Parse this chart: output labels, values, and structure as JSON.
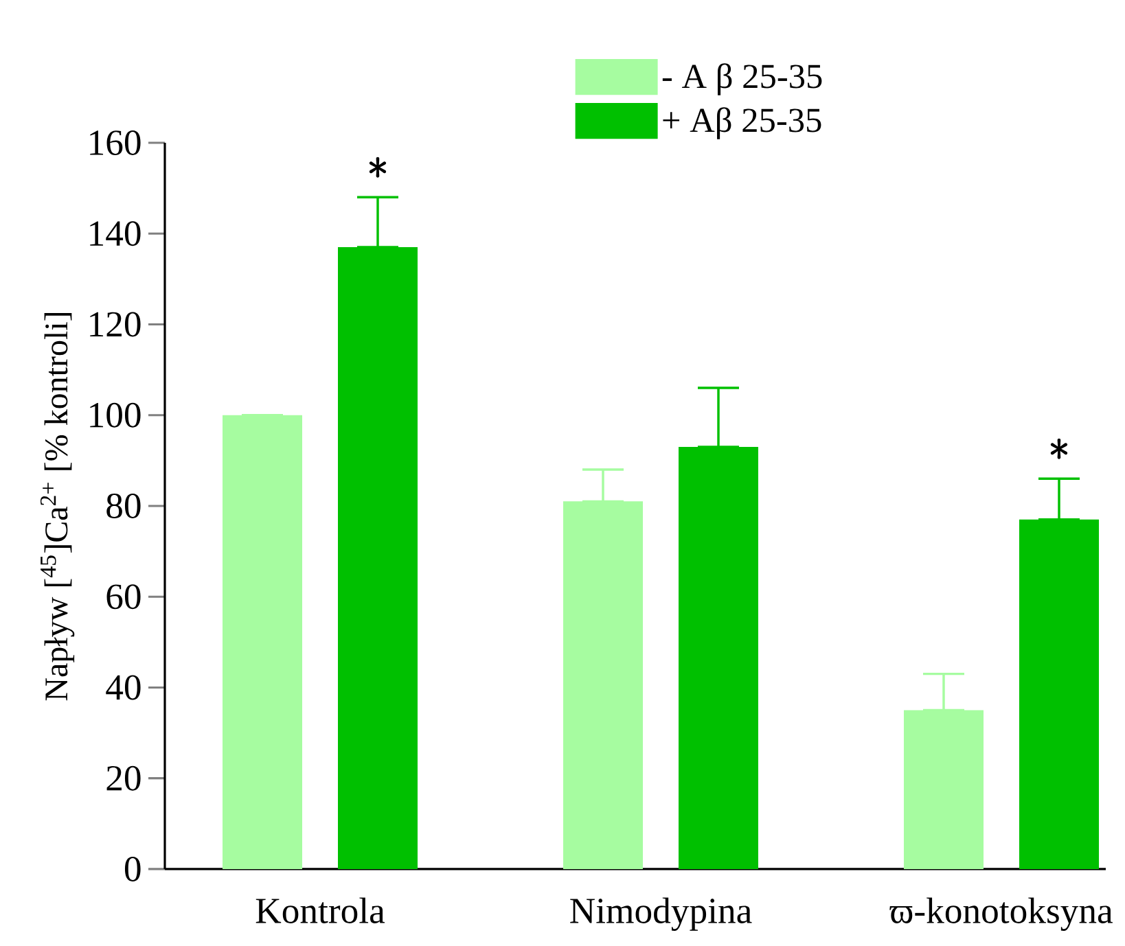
{
  "chart_data": {
    "type": "bar",
    "ylabel": "Napływ [$^{45}$]Ca$^{2+}$ [% kontroli]",
    "categories": [
      "Kontrola",
      "Nimodypina",
      "ϖ-konotoksyna"
    ],
    "series": [
      {
        "name": "- A β 25-35",
        "color": "#a6fca0",
        "values": [
          100,
          81,
          35
        ],
        "errors": [
          null,
          [
            81,
            88
          ],
          [
            35,
            43
          ]
        ]
      },
      {
        "name": "+ Aβ 25-35",
        "color": "#00c000",
        "values": [
          137,
          93,
          77
        ],
        "errors": [
          [
            137,
            148
          ],
          [
            93,
            106
          ],
          [
            77,
            86
          ]
        ]
      }
    ],
    "ylim": [
      0,
      160
    ],
    "yticks": [
      0,
      20,
      40,
      60,
      80,
      100,
      120,
      140,
      160
    ],
    "grid": false,
    "legend": "top",
    "annotations": [
      "*",
      "*"
    ]
  }
}
